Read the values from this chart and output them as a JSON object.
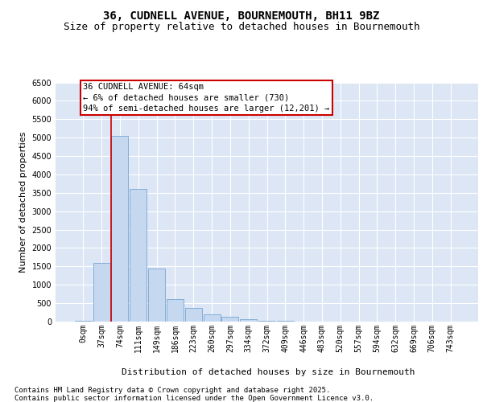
{
  "title_line1": "36, CUDNELL AVENUE, BOURNEMOUTH, BH11 9BZ",
  "title_line2": "Size of property relative to detached houses in Bournemouth",
  "xlabel": "Distribution of detached houses by size in Bournemouth",
  "ylabel": "Number of detached properties",
  "bar_labels": [
    "0sqm",
    "37sqm",
    "74sqm",
    "111sqm",
    "149sqm",
    "186sqm",
    "223sqm",
    "260sqm",
    "297sqm",
    "334sqm",
    "372sqm",
    "409sqm",
    "446sqm",
    "483sqm",
    "520sqm",
    "557sqm",
    "594sqm",
    "632sqm",
    "669sqm",
    "706sqm",
    "743sqm"
  ],
  "bar_values": [
    30,
    1600,
    5050,
    3600,
    1450,
    620,
    370,
    190,
    130,
    60,
    30,
    15,
    8,
    3,
    2,
    1,
    0,
    0,
    0,
    0,
    0
  ],
  "bar_color": "#c5d8f0",
  "bar_edge_color": "#6699cc",
  "plot_bg_color": "#dce6f5",
  "grid_color": "#ffffff",
  "annotation_text": "36 CUDNELL AVENUE: 64sqm\n← 6% of detached houses are smaller (730)\n94% of semi-detached houses are larger (12,201) →",
  "annotation_box_facecolor": "#ffffff",
  "annotation_box_edgecolor": "#cc0000",
  "vline_color": "#cc0000",
  "vline_x": 1.5,
  "ylim": [
    0,
    6500
  ],
  "yticks": [
    0,
    500,
    1000,
    1500,
    2000,
    2500,
    3000,
    3500,
    4000,
    4500,
    5000,
    5500,
    6000,
    6500
  ],
  "fig_bg_color": "#ffffff",
  "title_fontsize": 10,
  "subtitle_fontsize": 9,
  "axis_label_fontsize": 8,
  "tick_fontsize": 7,
  "annotation_fontsize": 7.5,
  "footer_fontsize": 6.5,
  "footer_line1": "Contains HM Land Registry data © Crown copyright and database right 2025.",
  "footer_line2": "Contains public sector information licensed under the Open Government Licence v3.0."
}
